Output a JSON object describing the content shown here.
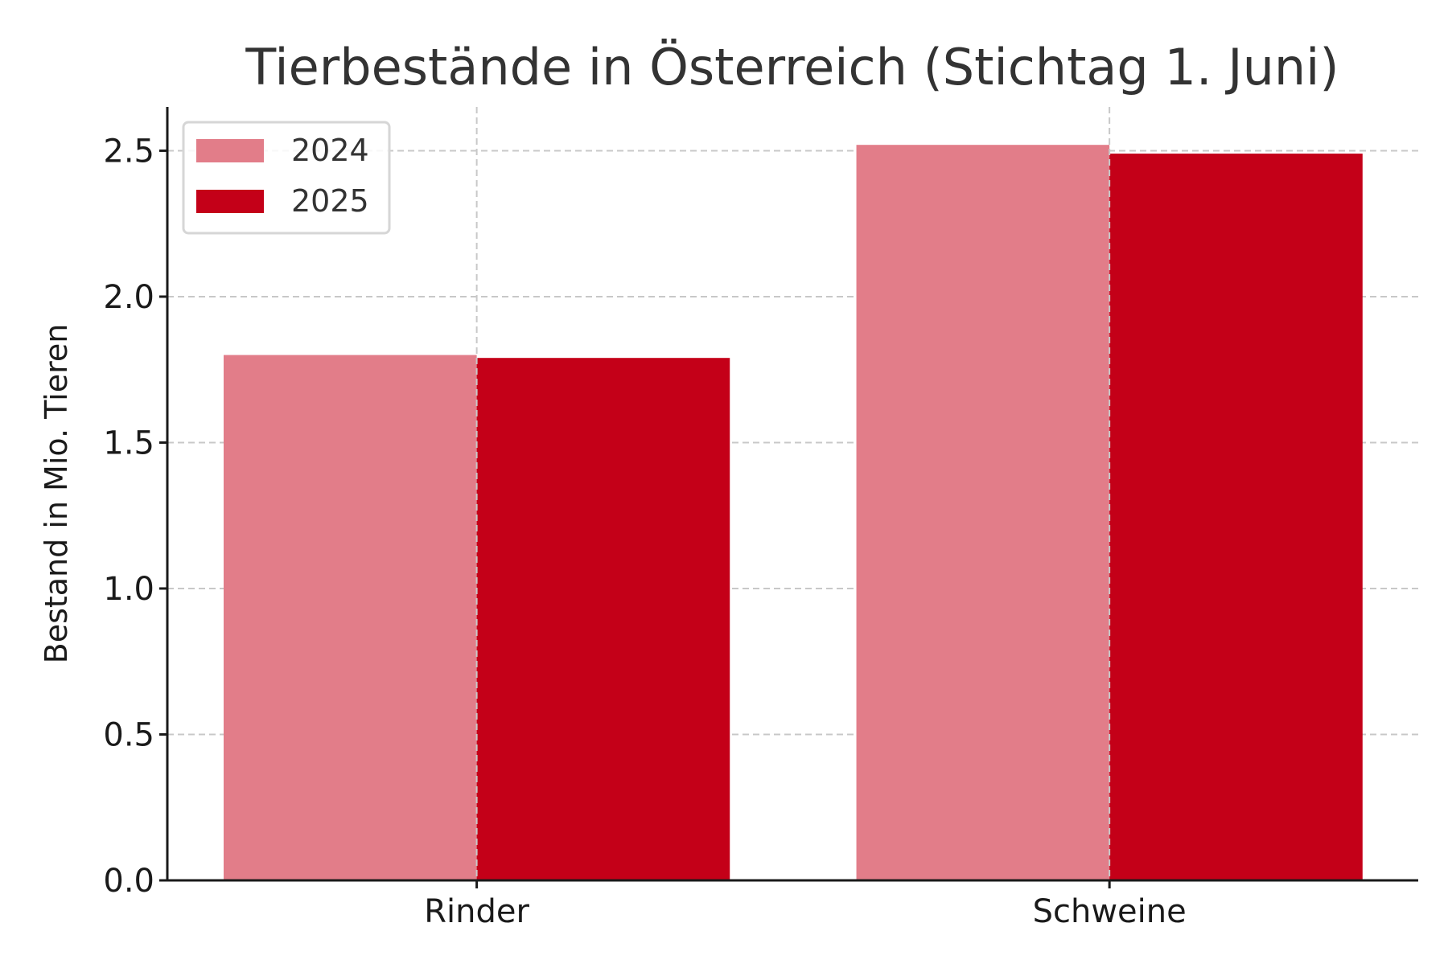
{
  "chart_data": {
    "type": "bar",
    "title": "Tierbestände in Österreich (Stichtag 1. Juni)",
    "xlabel": "",
    "ylabel": "Bestand in Mio. Tieren",
    "categories": [
      "Rinder",
      "Schweine"
    ],
    "series": [
      {
        "name": "2024",
        "values": [
          1.8,
          2.52
        ],
        "color": "#E27D89"
      },
      {
        "name": "2025",
        "values": [
          1.79,
          2.49
        ],
        "color": "#C40018"
      }
    ],
    "ylim": [
      0,
      2.65
    ],
    "yticks": [
      "0.0",
      "0.5",
      "1.0",
      "1.5",
      "2.0",
      "2.5"
    ],
    "grid": true,
    "legend": "top-left"
  }
}
